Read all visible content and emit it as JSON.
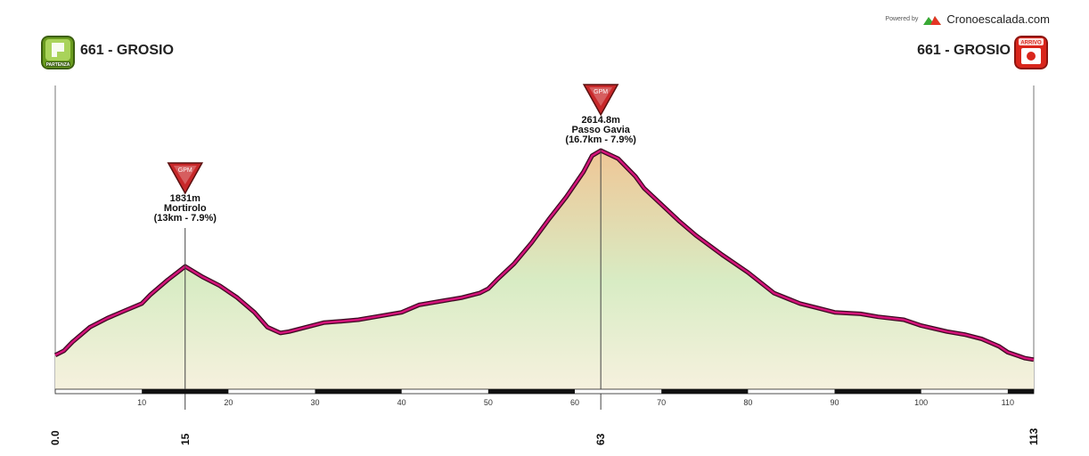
{
  "powered": {
    "prefix": "Powered by",
    "site": "Cronoescalada.com"
  },
  "start": {
    "label": "661 - GROSIO",
    "badge_text": "PARTENZA"
  },
  "finish": {
    "label": "661 - GROSIO",
    "badge_text": "ARRIVO"
  },
  "colors": {
    "line": "#d4147a",
    "grid": "#555555",
    "fill_top": "#efc696",
    "fill_mid": "#d8ecc4",
    "fill_bottom": "#f6f1de"
  },
  "chart_data": {
    "type": "area",
    "x_unit": "km",
    "xlim": [
      0,
      113
    ],
    "x": [
      0,
      1,
      2,
      4,
      6,
      8,
      10,
      11,
      13,
      15,
      17,
      19,
      21,
      23,
      24.5,
      26,
      27,
      29,
      31,
      33,
      35,
      37,
      40,
      42,
      45,
      47,
      49,
      50,
      51,
      53,
      55,
      57,
      59,
      61,
      62,
      63,
      65,
      67,
      68,
      70,
      72,
      74,
      77,
      80,
      83,
      86,
      88,
      90,
      93,
      95,
      98,
      100,
      103,
      105,
      107,
      109,
      110,
      112,
      113
    ],
    "y": [
      1230,
      1260,
      1320,
      1420,
      1480,
      1530,
      1580,
      1640,
      1740,
      1831,
      1760,
      1700,
      1620,
      1520,
      1420,
      1380,
      1390,
      1420,
      1450,
      1460,
      1470,
      1490,
      1520,
      1570,
      1600,
      1620,
      1650,
      1680,
      1740,
      1850,
      1990,
      2150,
      2300,
      2470,
      2580,
      2614.8,
      2560,
      2440,
      2360,
      2250,
      2140,
      2040,
      1910,
      1790,
      1650,
      1580,
      1550,
      1520,
      1510,
      1490,
      1470,
      1430,
      1390,
      1370,
      1340,
      1290,
      1250,
      1210,
      1200
    ],
    "ticks": [
      "10",
      "20",
      "30",
      "40",
      "50",
      "60",
      "70",
      "80",
      "90",
      "100",
      "110"
    ],
    "markers": [
      "0.0",
      "15",
      "63",
      "113"
    ],
    "climbs": [
      {
        "km": 15,
        "badge": "GPM",
        "altitude": "1831m",
        "name": "Mortirolo",
        "stats": "(13km - 7.9%)"
      },
      {
        "km": 63,
        "badge": "GPM",
        "altitude": "2614.8m",
        "name": "Passo Gavia",
        "stats": "(16.7km - 7.9%)"
      }
    ]
  }
}
